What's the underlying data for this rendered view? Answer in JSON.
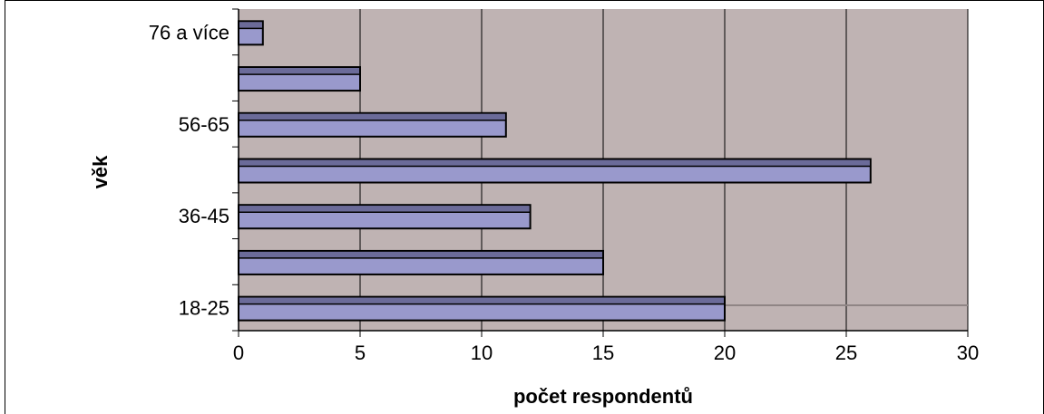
{
  "chart_data": {
    "type": "bar",
    "orientation": "horizontal",
    "categories": [
      "18-25",
      "",
      "36-45",
      "",
      "56-65",
      "",
      "76 a více"
    ],
    "values": [
      20,
      15,
      12,
      26,
      11,
      5,
      1
    ],
    "xlabel": "počet respondentů",
    "ylabel": "věk",
    "xlim": [
      0,
      30
    ],
    "xticks": [
      0,
      5,
      10,
      15,
      20,
      25,
      30
    ],
    "grid": "vertical",
    "colors": {
      "plot_background": "#bfb3b3",
      "bar_fill": "#9999cc",
      "bar_top": "#6b6b99",
      "bar_edge": "#000000",
      "gridline": "#000000"
    }
  }
}
